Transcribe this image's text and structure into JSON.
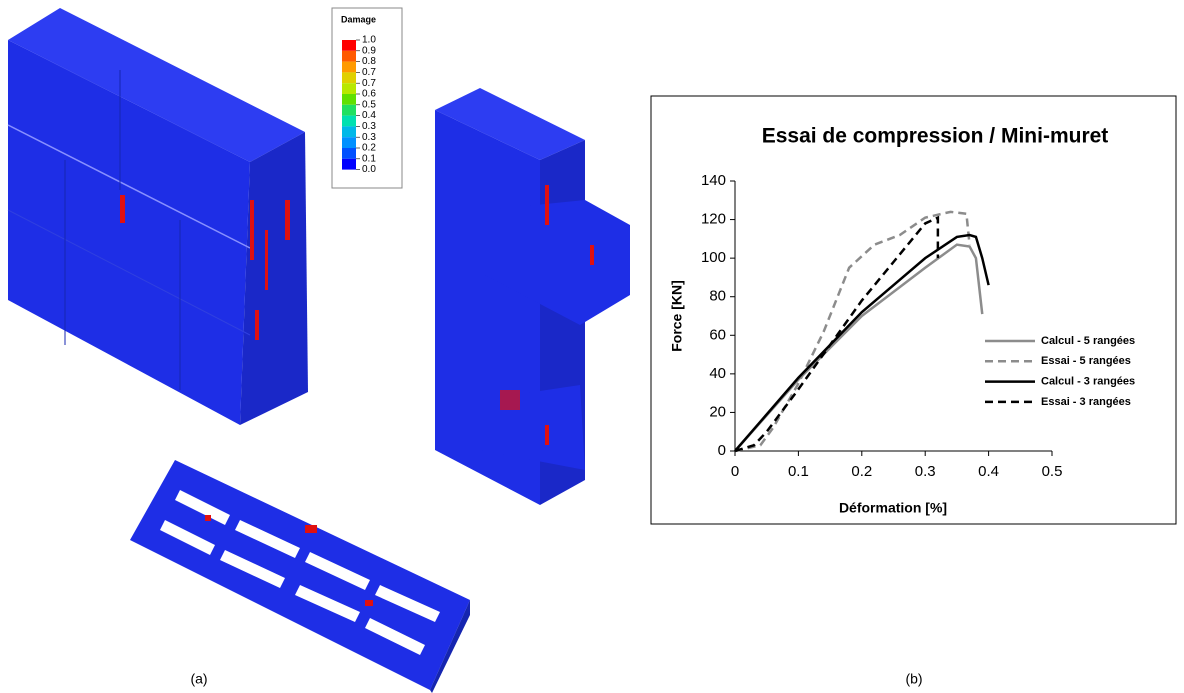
{
  "chart_data": {
    "type": "line",
    "title": "Essai de compression / Mini-muret",
    "x_label": "Déformation [%]",
    "y_label": "Force [KN]",
    "xlim": [
      0,
      0.5
    ],
    "xticks": [
      0,
      0.1,
      0.2,
      0.3,
      0.4,
      0.5
    ],
    "ylim": [
      0,
      140
    ],
    "yticks": [
      0,
      20,
      40,
      60,
      80,
      100,
      120,
      140
    ],
    "grid": false,
    "legend": "right",
    "series": [
      {
        "name": "Calcul - 5 rangées",
        "color": "#8c8c8c",
        "style": "solid",
        "x": [
          0,
          0.1,
          0.2,
          0.3,
          0.35,
          0.37,
          0.38,
          0.39
        ],
        "values": [
          0,
          37,
          70,
          95,
          107,
          106,
          100,
          71
        ]
      },
      {
        "name": "Essai - 5 rangées",
        "color": "#8c8c8c",
        "style": "dashed",
        "x": [
          0,
          0.04,
          0.06,
          0.1,
          0.14,
          0.18,
          0.22,
          0.26,
          0.3,
          0.34,
          0.365,
          0.37
        ],
        "values": [
          0,
          3,
          12,
          35,
          62,
          95,
          107,
          112,
          121,
          124,
          123,
          107
        ]
      },
      {
        "name": "Calcul - 3 rangées",
        "color": "#000000",
        "style": "solid",
        "x": [
          0,
          0.1,
          0.2,
          0.3,
          0.35,
          0.37,
          0.38,
          0.39,
          0.4
        ],
        "values": [
          0,
          38,
          72,
          100,
          111,
          112,
          111,
          100,
          86
        ]
      },
      {
        "name": "Essai - 3 rangées",
        "color": "#000000",
        "style": "dashed",
        "x": [
          0,
          0.03,
          0.05,
          0.1,
          0.15,
          0.2,
          0.25,
          0.3,
          0.32,
          0.32
        ],
        "values": [
          0,
          3,
          10,
          32,
          55,
          78,
          98,
          118,
          121,
          100
        ]
      }
    ]
  },
  "damage_legend": {
    "title": "Damage",
    "labels": [
      "1.0",
      "0.9",
      "0.8",
      "0.7",
      "0.7",
      "0.6",
      "0.5",
      "0.4",
      "0.3",
      "0.3",
      "0.2",
      "0.1",
      "0.0"
    ],
    "colors": [
      "#ff0000",
      "#ff5a00",
      "#ff9a00",
      "#e0d000",
      "#b8e800",
      "#60e000",
      "#20e060",
      "#00e0b0",
      "#00b8e8",
      "#0090ff",
      "#0050ff",
      "#0000ff"
    ]
  },
  "captions": [
    "(a)",
    "(b)"
  ]
}
